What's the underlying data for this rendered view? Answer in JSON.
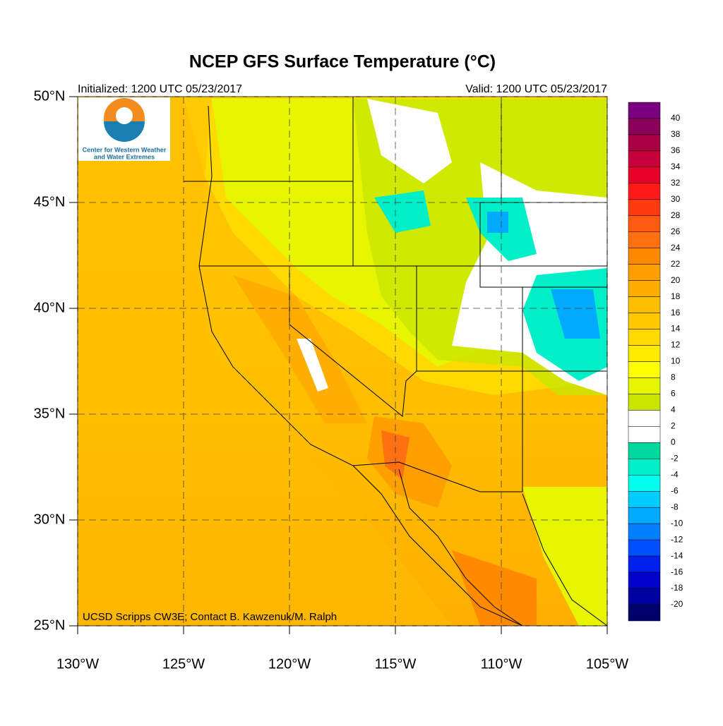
{
  "title": "NCEP GFS Surface Temperature (°C)",
  "initialized": "Initialized: 1200 UTC 05/23/2017",
  "valid": "Valid: 1200 UTC 05/23/2017",
  "logo_text": [
    "Center for Western Weather",
    "and Water Extremes"
  ],
  "credit": "UCSD Scripps CW3E; Contact B. Kawzenuk/M. Ralph",
  "map": {
    "lon_range": [
      -130,
      -105
    ],
    "lat_range": [
      25,
      50
    ],
    "lon_ticks": [
      {
        "value": -130,
        "label": "130°W"
      },
      {
        "value": -125,
        "label": "125°W"
      },
      {
        "value": -120,
        "label": "120°W"
      },
      {
        "value": -115,
        "label": "115°W"
      },
      {
        "value": -110,
        "label": "110°W"
      },
      {
        "value": -105,
        "label": "105°W"
      }
    ],
    "lat_ticks": [
      {
        "value": 50,
        "label": "50°N"
      },
      {
        "value": 45,
        "label": "45°N"
      },
      {
        "value": 40,
        "label": "40°N"
      },
      {
        "value": 35,
        "label": "35°N"
      },
      {
        "value": 30,
        "label": "30°N"
      },
      {
        "value": 25,
        "label": "25°N"
      }
    ]
  },
  "colorbar": {
    "levels": [
      40,
      38,
      36,
      34,
      32,
      30,
      28,
      26,
      24,
      22,
      20,
      18,
      16,
      14,
      12,
      10,
      8,
      6,
      4,
      2,
      0,
      -2,
      -4,
      -6,
      -8,
      -10,
      -12,
      -14,
      -16,
      -18,
      -20
    ],
    "colors": [
      "#7a0080",
      "#8b005a",
      "#a80040",
      "#c8003a",
      "#e8002a",
      "#ff1a1a",
      "#ff3a10",
      "#ff5a10",
      "#ff7010",
      "#ff8a00",
      "#ffa000",
      "#ffae00",
      "#ffbe00",
      "#ffc800",
      "#ffda00",
      "#ffea00",
      "#ffff00",
      "#e8f500",
      "#c8e600",
      "#ffffff",
      "#ffffff",
      "#00d8a0",
      "#00eec8",
      "#00ffee",
      "#00ccff",
      "#00aaff",
      "#0080ff",
      "#0050ff",
      "#0020ee",
      "#0000cc",
      "#0000a0",
      "#00006a"
    ]
  }
}
